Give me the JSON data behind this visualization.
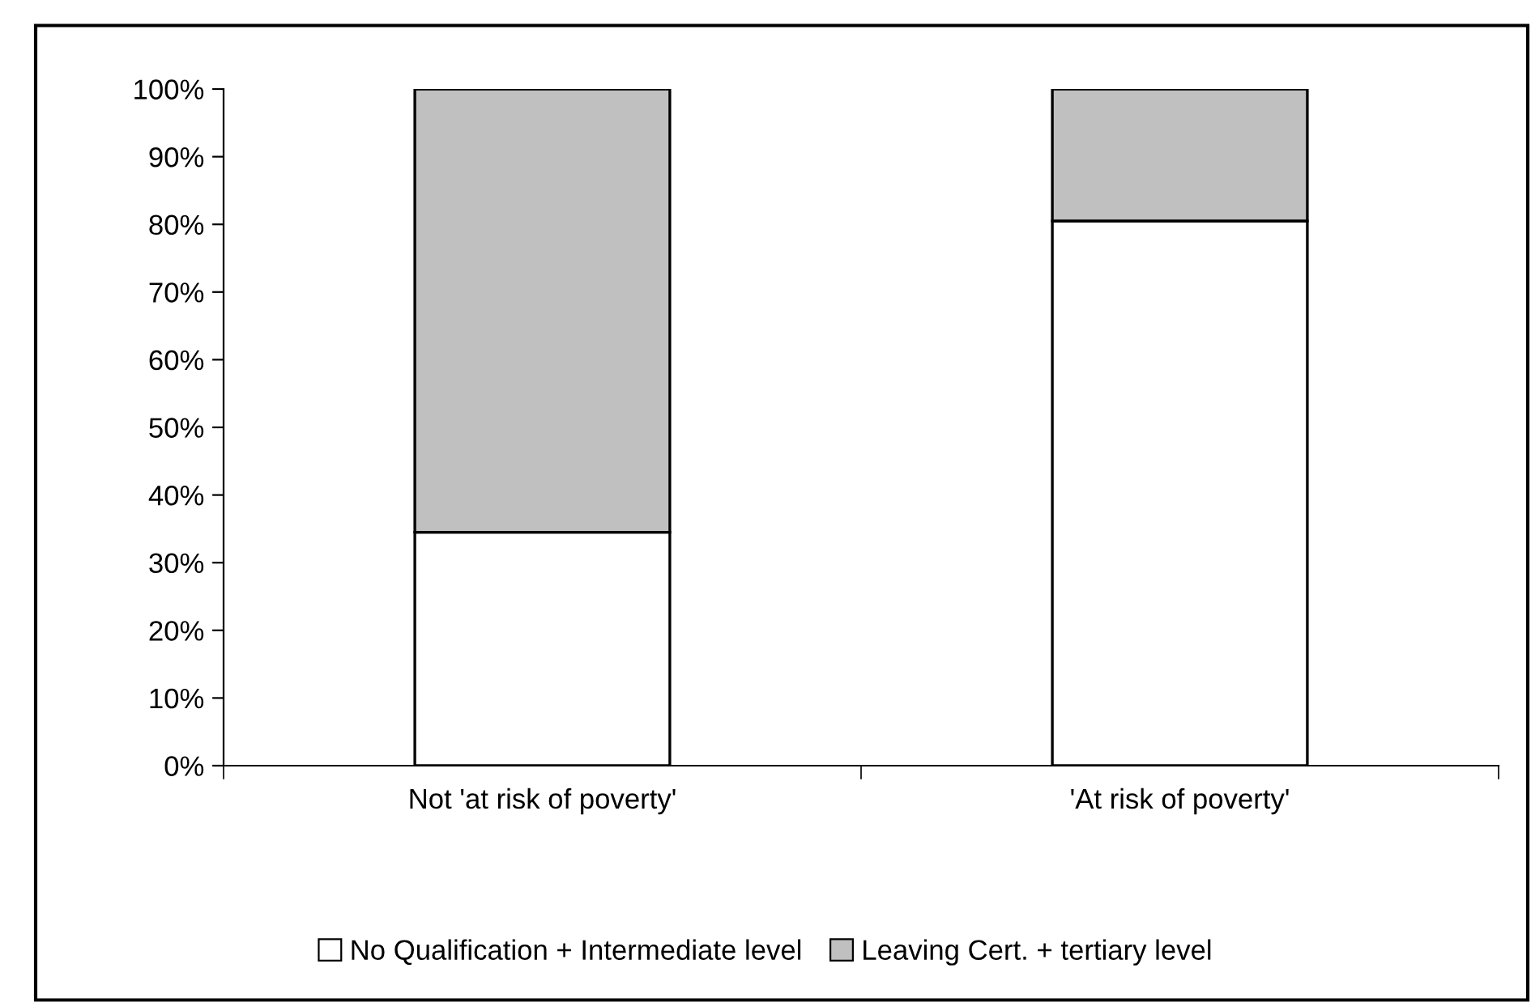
{
  "chart_data": {
    "type": "bar",
    "stacked": true,
    "categories": [
      "Not 'at risk of poverty'",
      "'At risk of poverty'"
    ],
    "series": [
      {
        "name": "No Qualification + Intermediate level",
        "color": "#ffffff",
        "values": [
          34.5,
          80.5
        ]
      },
      {
        "name": "Leaving Cert. + tertiary level",
        "color": "#c0c0c0",
        "values": [
          65.5,
          19.5
        ]
      }
    ],
    "ylim": [
      0,
      100
    ],
    "yticks": [
      {
        "value": 0,
        "label": "0%"
      },
      {
        "value": 10,
        "label": "10%"
      },
      {
        "value": 20,
        "label": "20%"
      },
      {
        "value": 30,
        "label": "30%"
      },
      {
        "value": 40,
        "label": "40%"
      },
      {
        "value": 50,
        "label": "50%"
      },
      {
        "value": 60,
        "label": "60%"
      },
      {
        "value": 70,
        "label": "70%"
      },
      {
        "value": 80,
        "label": "80%"
      },
      {
        "value": 90,
        "label": "90%"
      },
      {
        "value": 100,
        "label": "100%"
      }
    ],
    "grid": false,
    "legend": "bottom"
  }
}
